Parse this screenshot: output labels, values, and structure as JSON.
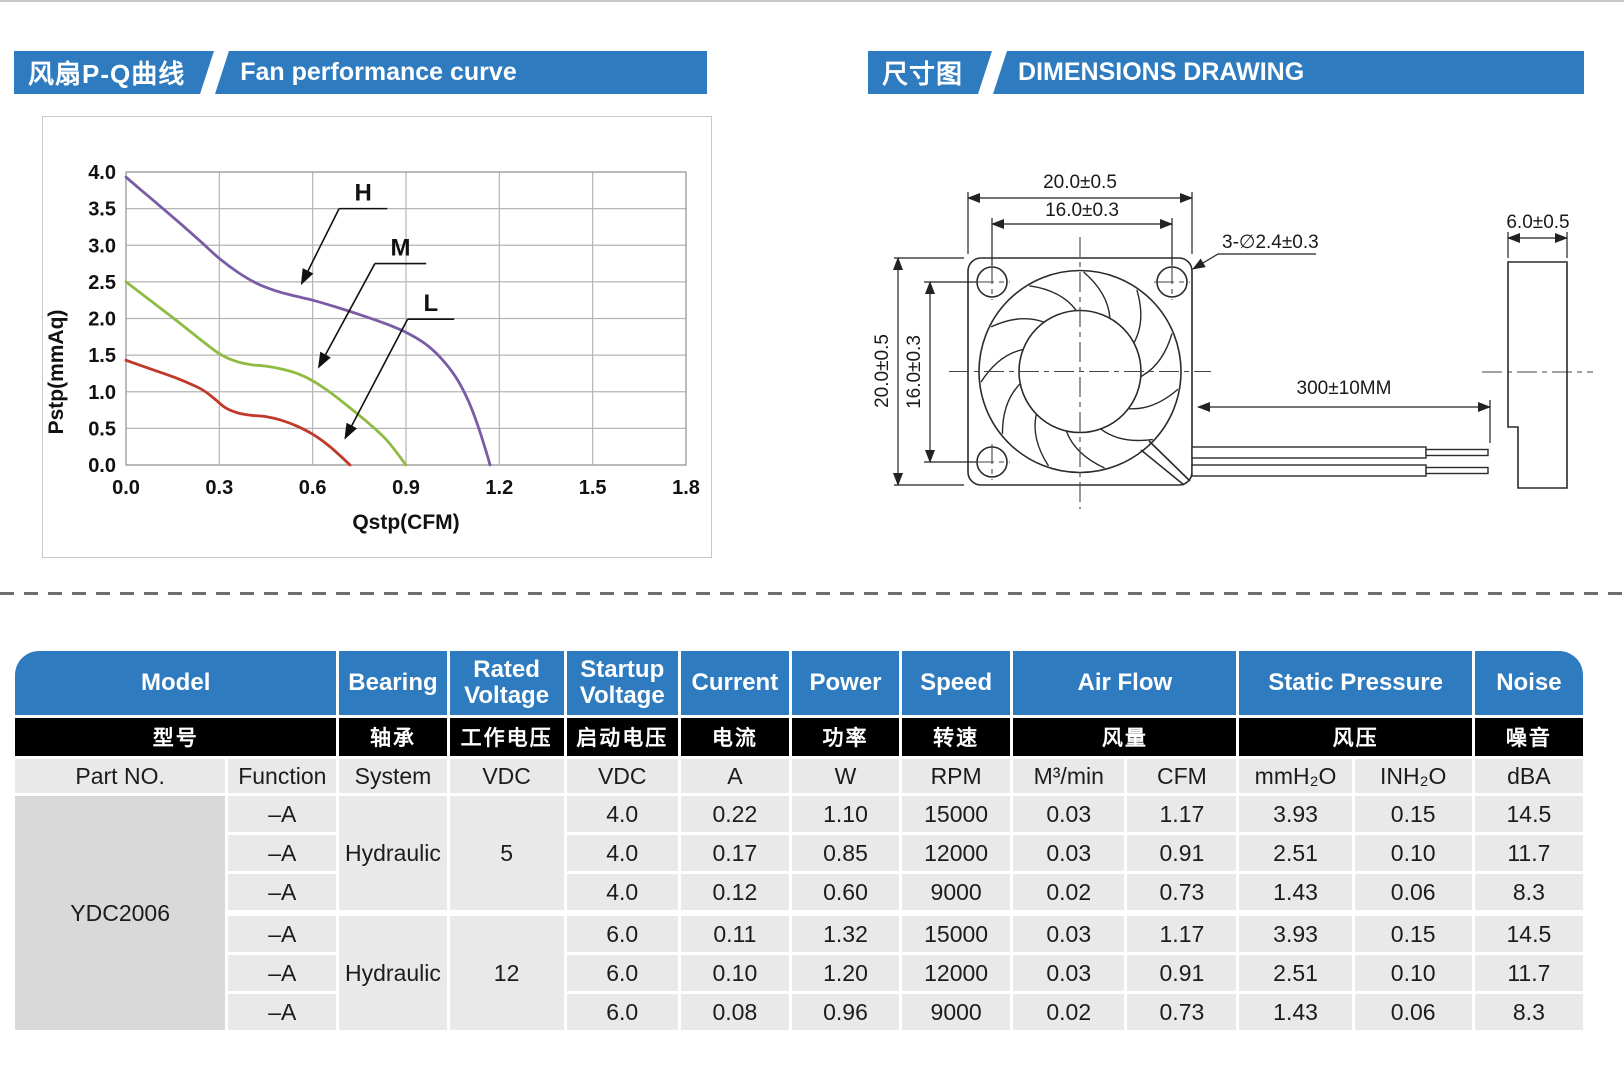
{
  "headers": {
    "left": {
      "zh": "风扇P-Q曲线",
      "en": "Fan performance curve"
    },
    "right": {
      "zh": "尺寸图",
      "en": "DIMENSIONS DRAWING"
    }
  },
  "chart_data": {
    "type": "line",
    "title": "",
    "xlabel": "Qstp(CFM)",
    "ylabel": "Pstp(mmAq)",
    "xlim": [
      0,
      1.8
    ],
    "ylim": [
      0,
      4.0
    ],
    "xticks": [
      "0.0",
      "0.3",
      "0.6",
      "0.9",
      "1.2",
      "1.5",
      "1.8"
    ],
    "yticks": [
      "0.0",
      "0.5",
      "1.0",
      "1.5",
      "2.0",
      "2.5",
      "3.0",
      "3.5",
      "4.0"
    ],
    "grid": true,
    "grid_color": "#b4b4b4",
    "legend_position": "inline-callouts",
    "series": [
      {
        "name": "H",
        "color": "#7a5ba5",
        "points": [
          [
            0,
            3.93
          ],
          [
            0.08,
            3.64
          ],
          [
            0.16,
            3.35
          ],
          [
            0.24,
            3.05
          ],
          [
            0.3,
            2.82
          ],
          [
            0.36,
            2.63
          ],
          [
            0.42,
            2.48
          ],
          [
            0.48,
            2.38
          ],
          [
            0.54,
            2.31
          ],
          [
            0.6,
            2.25
          ],
          [
            0.68,
            2.15
          ],
          [
            0.76,
            2.04
          ],
          [
            0.84,
            1.92
          ],
          [
            0.9,
            1.81
          ],
          [
            0.96,
            1.66
          ],
          [
            1.01,
            1.47
          ],
          [
            1.06,
            1.2
          ],
          [
            1.1,
            0.88
          ],
          [
            1.13,
            0.55
          ],
          [
            1.16,
            0.15
          ],
          [
            1.17,
            0
          ]
        ]
      },
      {
        "name": "M",
        "color": "#8fbb44",
        "points": [
          [
            0,
            2.5
          ],
          [
            0.08,
            2.24
          ],
          [
            0.16,
            1.98
          ],
          [
            0.24,
            1.71
          ],
          [
            0.3,
            1.52
          ],
          [
            0.35,
            1.42
          ],
          [
            0.4,
            1.37
          ],
          [
            0.45,
            1.35
          ],
          [
            0.5,
            1.31
          ],
          [
            0.55,
            1.25
          ],
          [
            0.6,
            1.15
          ],
          [
            0.66,
            0.98
          ],
          [
            0.72,
            0.78
          ],
          [
            0.78,
            0.57
          ],
          [
            0.84,
            0.33
          ],
          [
            0.9,
            0
          ]
        ]
      },
      {
        "name": "L",
        "color": "#c0392b",
        "points": [
          [
            0,
            1.43
          ],
          [
            0.08,
            1.31
          ],
          [
            0.16,
            1.19
          ],
          [
            0.24,
            1.04
          ],
          [
            0.28,
            0.92
          ],
          [
            0.32,
            0.78
          ],
          [
            0.36,
            0.71
          ],
          [
            0.4,
            0.68
          ],
          [
            0.45,
            0.66
          ],
          [
            0.5,
            0.61
          ],
          [
            0.55,
            0.53
          ],
          [
            0.6,
            0.42
          ],
          [
            0.65,
            0.27
          ],
          [
            0.69,
            0.12
          ],
          [
            0.72,
            0
          ]
        ]
      }
    ],
    "annotations": [
      {
        "label": "H",
        "underline_y": 3.5,
        "underline_x": [
          0.685,
          0.84
        ],
        "tip": [
          0.565,
          2.48
        ]
      },
      {
        "label": "M",
        "underline_y": 2.75,
        "underline_x": [
          0.8,
          0.965
        ],
        "tip": [
          0.62,
          1.34
        ]
      },
      {
        "label": "L",
        "underline_y": 1.99,
        "underline_x": [
          0.905,
          1.055
        ],
        "tip": [
          0.705,
          0.37
        ]
      }
    ]
  },
  "dimensions": {
    "front_width": "20.0±0.5",
    "front_hole_spacing_h": "16.0±0.3",
    "front_height": "20.0±0.5",
    "front_hole_spacing_v": "16.0±0.3",
    "holes_callout": "3-∅2.4±0.3",
    "wire_length": "300±10MM",
    "thickness": "6.0±0.5"
  },
  "table": {
    "en": {
      "model": "Model",
      "bearing": "Bearing",
      "rated": "Rated Voltage",
      "startup": "Startup Voltage",
      "current": "Current",
      "power": "Power",
      "speed": "Speed",
      "airflow": "Air Flow",
      "pressure": "Static Pressure",
      "noise": "Noise"
    },
    "zh": {
      "model": "型号",
      "bearing": "轴承",
      "rated": "工作电压",
      "startup": "启动电压",
      "current": "电流",
      "power": "功率",
      "speed": "转速",
      "airflow": "风量",
      "pressure": "风压",
      "noise": "噪音"
    },
    "units": {
      "part": "Part NO.",
      "function": "Function",
      "system": "System",
      "rated": "VDC",
      "startup": "VDC",
      "current": "A",
      "power": "W",
      "speed": "RPM",
      "m3min": "M³/min",
      "cfm": "CFM",
      "mmh2o": "mmH₂O",
      "inh2o": "INH₂O",
      "dba": "dBA"
    },
    "part_no": "YDC2006",
    "groups": [
      {
        "bearing": "Hydraulic",
        "rated": "5",
        "rows": [
          {
            "function": "–A",
            "startup": "4.0",
            "current": "0.22",
            "power": "1.10",
            "speed": "15000",
            "m3min": "0.03",
            "cfm": "1.17",
            "mmh2o": "3.93",
            "inh2o": "0.15",
            "dba": "14.5"
          },
          {
            "function": "–A",
            "startup": "4.0",
            "current": "0.17",
            "power": "0.85",
            "speed": "12000",
            "m3min": "0.03",
            "cfm": "0.91",
            "mmh2o": "2.51",
            "inh2o": "0.10",
            "dba": "11.7"
          },
          {
            "function": "–A",
            "startup": "4.0",
            "current": "0.12",
            "power": "0.60",
            "speed": "9000",
            "m3min": "0.02",
            "cfm": "0.73",
            "mmh2o": "1.43",
            "inh2o": "0.06",
            "dba": "8.3"
          }
        ]
      },
      {
        "bearing": "Hydraulic",
        "rated": "12",
        "rows": [
          {
            "function": "–A",
            "startup": "6.0",
            "current": "0.11",
            "power": "1.32",
            "speed": "15000",
            "m3min": "0.03",
            "cfm": "1.17",
            "mmh2o": "3.93",
            "inh2o": "0.15",
            "dba": "14.5"
          },
          {
            "function": "–A",
            "startup": "6.0",
            "current": "0.10",
            "power": "1.20",
            "speed": "12000",
            "m3min": "0.03",
            "cfm": "0.91",
            "mmh2o": "2.51",
            "inh2o": "0.10",
            "dba": "11.7"
          },
          {
            "function": "–A",
            "startup": "6.0",
            "current": "0.08",
            "power": "0.96",
            "speed": "9000",
            "m3min": "0.02",
            "cfm": "0.73",
            "mmh2o": "1.43",
            "inh2o": "0.06",
            "dba": "8.3"
          }
        ]
      }
    ]
  }
}
